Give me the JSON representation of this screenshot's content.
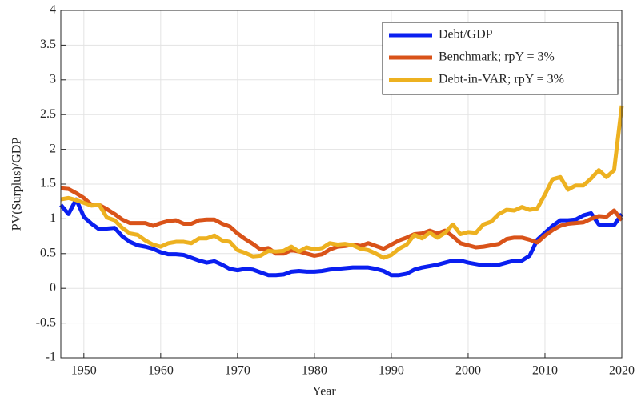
{
  "chart_data": {
    "type": "line",
    "x_label": "Year",
    "y_label": "PV(Surplus)/GDP",
    "x": [
      1947,
      1948,
      1949,
      1950,
      1951,
      1952,
      1953,
      1954,
      1955,
      1956,
      1957,
      1958,
      1959,
      1960,
      1961,
      1962,
      1963,
      1964,
      1965,
      1966,
      1967,
      1968,
      1969,
      1970,
      1971,
      1972,
      1973,
      1974,
      1975,
      1976,
      1977,
      1978,
      1979,
      1980,
      1981,
      1982,
      1983,
      1984,
      1985,
      1986,
      1987,
      1988,
      1989,
      1990,
      1991,
      1992,
      1993,
      1994,
      1995,
      1996,
      1997,
      1998,
      1999,
      2000,
      2001,
      2002,
      2003,
      2004,
      2005,
      2006,
      2007,
      2008,
      2009,
      2010,
      2011,
      2012,
      2013,
      2014,
      2015,
      2016,
      2017,
      2018,
      2019,
      2020
    ],
    "series": [
      {
        "name": "Debt/GDP",
        "color": "#0a1ff0",
        "values": [
          1.2,
          1.07,
          1.28,
          1.03,
          0.93,
          0.85,
          0.86,
          0.87,
          0.75,
          0.67,
          0.62,
          0.6,
          0.57,
          0.52,
          0.49,
          0.49,
          0.48,
          0.44,
          0.4,
          0.37,
          0.39,
          0.34,
          0.28,
          0.26,
          0.28,
          0.27,
          0.23,
          0.19,
          0.19,
          0.2,
          0.24,
          0.25,
          0.24,
          0.24,
          0.25,
          0.27,
          0.28,
          0.29,
          0.3,
          0.3,
          0.3,
          0.28,
          0.25,
          0.19,
          0.19,
          0.21,
          0.27,
          0.3,
          0.32,
          0.34,
          0.37,
          0.4,
          0.4,
          0.37,
          0.35,
          0.33,
          0.33,
          0.34,
          0.37,
          0.4,
          0.4,
          0.47,
          0.7,
          0.8,
          0.9,
          0.98,
          0.98,
          0.99,
          1.05,
          1.08,
          0.92,
          0.91,
          0.91,
          1.07
        ]
      },
      {
        "name": "Benchmark; rpY = 3%",
        "color": "#d95319",
        "values": [
          1.44,
          1.43,
          1.37,
          1.3,
          1.2,
          1.2,
          1.14,
          1.07,
          0.99,
          0.94,
          0.94,
          0.94,
          0.9,
          0.94,
          0.97,
          0.98,
          0.93,
          0.93,
          0.98,
          0.99,
          0.99,
          0.93,
          0.89,
          0.79,
          0.71,
          0.64,
          0.56,
          0.58,
          0.5,
          0.5,
          0.55,
          0.53,
          0.5,
          0.47,
          0.49,
          0.56,
          0.6,
          0.61,
          0.63,
          0.61,
          0.65,
          0.61,
          0.57,
          0.63,
          0.69,
          0.73,
          0.78,
          0.79,
          0.83,
          0.79,
          0.83,
          0.75,
          0.65,
          0.62,
          0.59,
          0.6,
          0.62,
          0.64,
          0.71,
          0.73,
          0.73,
          0.7,
          0.66,
          0.76,
          0.84,
          0.9,
          0.93,
          0.94,
          0.95,
          1.0,
          1.04,
          1.03,
          1.12,
          0.98
        ]
      },
      {
        "name": "Debt-in-VAR; rpY = 3%",
        "color": "#edb120",
        "values": [
          1.28,
          1.3,
          1.27,
          1.23,
          1.19,
          1.2,
          1.02,
          0.98,
          0.87,
          0.79,
          0.77,
          0.69,
          0.63,
          0.6,
          0.65,
          0.67,
          0.67,
          0.65,
          0.72,
          0.72,
          0.76,
          0.69,
          0.67,
          0.55,
          0.51,
          0.46,
          0.47,
          0.54,
          0.53,
          0.54,
          0.6,
          0.53,
          0.59,
          0.56,
          0.58,
          0.65,
          0.63,
          0.64,
          0.62,
          0.57,
          0.55,
          0.5,
          0.44,
          0.48,
          0.57,
          0.63,
          0.77,
          0.72,
          0.8,
          0.73,
          0.8,
          0.92,
          0.78,
          0.81,
          0.8,
          0.92,
          0.96,
          1.07,
          1.13,
          1.12,
          1.17,
          1.13,
          1.15,
          1.35,
          1.57,
          1.6,
          1.42,
          1.48,
          1.48,
          1.58,
          1.7,
          1.6,
          1.7,
          2.63
        ]
      }
    ],
    "xlim": [
      1947,
      2020
    ],
    "xticks": [
      1950,
      1960,
      1970,
      1980,
      1990,
      2000,
      2010,
      2020
    ],
    "ylim": [
      -1,
      4
    ],
    "yticks": [
      -1,
      -0.5,
      0,
      0.5,
      1,
      1.5,
      2,
      2.5,
      3,
      3.5,
      4
    ],
    "grid": true,
    "legend": "upper right"
  }
}
